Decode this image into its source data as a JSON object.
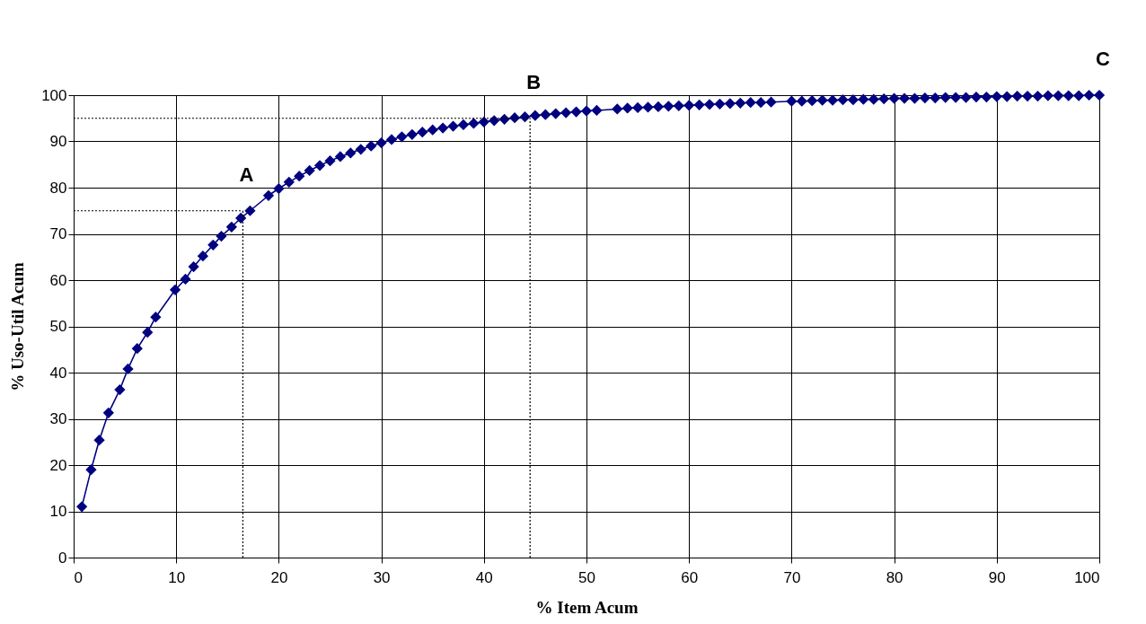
{
  "chart_data": {
    "type": "line",
    "xlabel": "% Item Acum",
    "ylabel": "% Uso-Util Acum",
    "x": [
      0.8,
      1.7,
      2.5,
      3.4,
      4.5,
      5.3,
      6.2,
      7.2,
      8,
      9.9,
      10.9,
      11.7,
      12.6,
      13.6,
      14.4,
      15.4,
      16.3,
      17.2,
      19,
      20,
      21,
      22,
      23,
      24,
      25,
      26,
      27,
      28,
      29,
      30,
      31,
      32,
      33,
      34,
      35,
      36,
      37,
      38,
      39,
      40,
      41,
      42,
      43,
      44,
      45,
      46,
      47,
      48,
      49,
      50,
      51,
      53,
      54,
      55,
      56,
      57,
      58,
      59,
      60,
      61,
      62,
      63,
      64,
      65,
      66,
      67,
      68,
      70,
      71,
      72,
      73,
      74,
      75,
      76,
      77,
      78,
      79,
      80,
      81,
      82,
      83,
      84,
      85,
      86,
      87,
      88,
      89,
      90,
      91,
      92,
      93,
      94,
      95,
      96,
      97,
      98,
      99,
      100
    ],
    "series": [
      {
        "color": "#000080",
        "values": [
          11,
          19,
          25.4,
          31.3,
          36.3,
          40.8,
          45.2,
          48.7,
          52,
          57.9,
          60.2,
          62.9,
          65.2,
          67.6,
          69.5,
          71.5,
          73.4,
          75,
          78.3,
          79.8,
          81.2,
          82.5,
          83.7,
          84.8,
          85.8,
          86.7,
          87.5,
          88.3,
          89,
          89.7,
          90.4,
          91,
          91.5,
          92,
          92.5,
          92.9,
          93.3,
          93.6,
          93.9,
          94.2,
          94.5,
          94.8,
          95.1,
          95.3,
          95.6,
          95.8,
          96,
          96.2,
          96.4,
          96.6,
          96.7,
          97,
          97.2,
          97.3,
          97.4,
          97.5,
          97.6,
          97.7,
          97.8,
          97.9,
          98,
          98.1,
          98.2,
          98.3,
          98.4,
          98.4,
          98.5,
          98.7,
          98.7,
          98.8,
          98.9,
          98.9,
          99,
          99,
          99.1,
          99.1,
          99.2,
          99.3,
          99.3,
          99.3,
          99.4,
          99.4,
          99.5,
          99.5,
          99.5,
          99.6,
          99.6,
          99.7,
          99.7,
          99.8,
          99.8,
          99.8,
          99.9,
          99.9,
          99.9,
          99.9,
          100,
          100
        ]
      }
    ],
    "xlim": [
      0,
      100
    ],
    "xticks": [
      0,
      10,
      20,
      30,
      40,
      50,
      60,
      70,
      80,
      90,
      100
    ],
    "ylim": [
      0,
      100
    ],
    "yticks": [
      0,
      10,
      20,
      30,
      40,
      50,
      60,
      70,
      80,
      90,
      100
    ],
    "grid": true,
    "marker": "diamond",
    "line_style": "solid",
    "ref_lines": [
      {
        "axis": "y",
        "value": 75,
        "line_style": "dotted"
      },
      {
        "axis": "y",
        "value": 95,
        "line_style": "dotted"
      },
      {
        "axis": "x",
        "value": 16.5,
        "line_style": "dotted"
      },
      {
        "axis": "x",
        "value": 44.5,
        "line_style": "dotted"
      }
    ],
    "annotations": [
      {
        "text": "A",
        "x": 16.5,
        "y": 75
      },
      {
        "text": "B",
        "x": 44.5,
        "y": 95
      },
      {
        "text": "C",
        "x": 100,
        "y": 100
      }
    ]
  }
}
